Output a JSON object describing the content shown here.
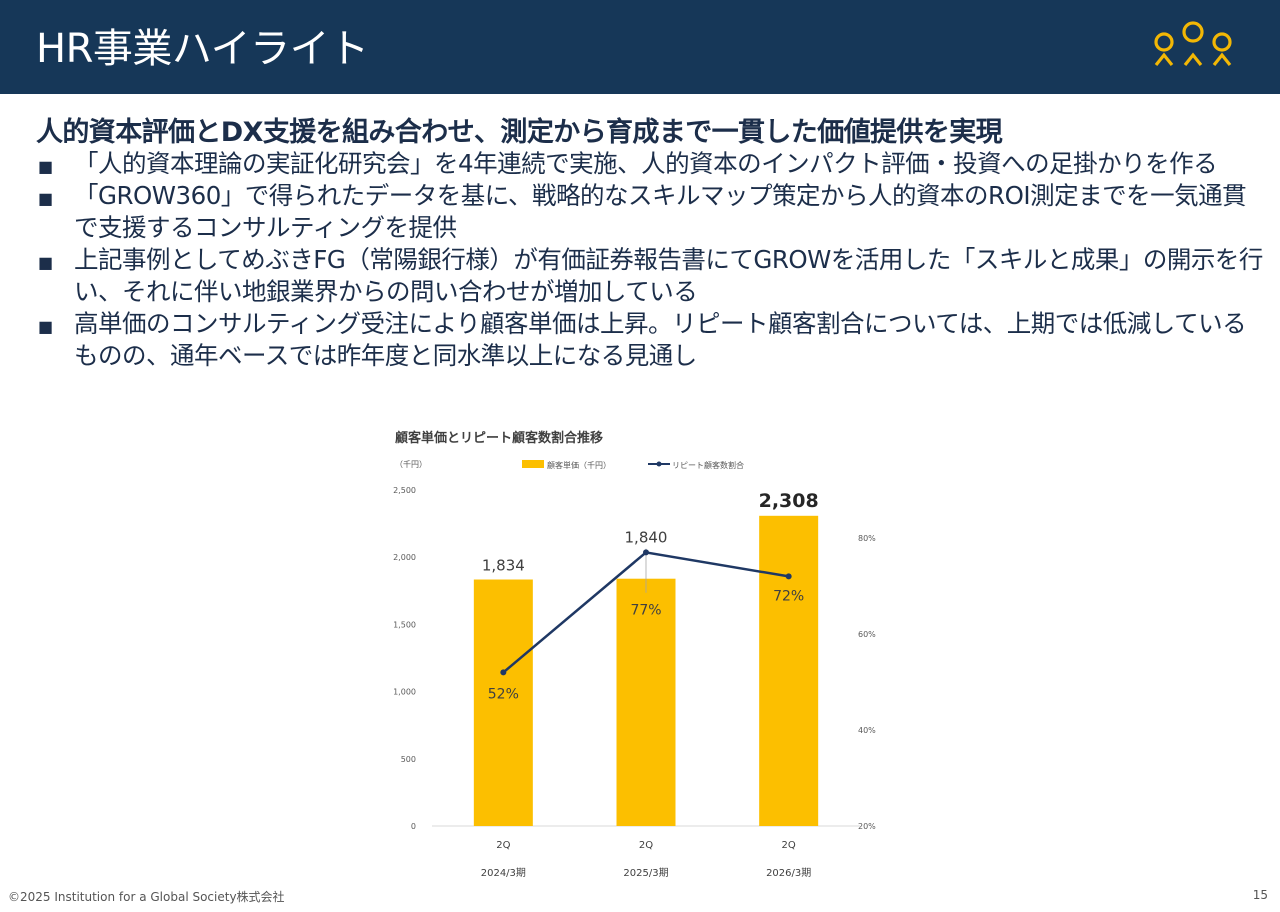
{
  "header": {
    "title": "HR事業ハイライト"
  },
  "colors": {
    "header_bg": "#163758",
    "logo": "#f2b705",
    "bar": "#fcbf00",
    "line": "#1f3864"
  },
  "headline": "人的資本評価とDX支援を組み合わせ、測定から育成まで一貫した価値提供を実現",
  "bullets": [
    {
      "mark": "■",
      "text": "「人的資本理論の実証化研究会」を4年連続で実施、人的資本のインパクト評価・投資への足掛かりを作る"
    },
    {
      "mark": "■",
      "text": "「GROW360」で得られたデータを基に、戦略的なスキルマップ策定から人的資本のROI測定までを一気通貫で支援するコンサルティングを提供"
    },
    {
      "mark": "■",
      "text": "上記事例としてめぶきFG（常陽銀行様）が有価証券報告書にてGROWを活用した「スキルと成果」の開示を行い、それに伴い地銀業界からの問い合わせが増加している"
    },
    {
      "mark": "■",
      "text": "高単価のコンサルティング受注により顧客単価は上昇。リピート顧客割合については、上期では低減しているものの、通年ベースでは昨年度と同水準以上になる見通し"
    }
  ],
  "chart_data": {
    "type": "bar",
    "title": "顧客単価とリピート顧客数割合推移",
    "left_unit": "（千円）",
    "categories": [
      "2Q",
      "2Q",
      "2Q"
    ],
    "period_labels": [
      "2024/3期",
      "2025/3期",
      "2026/3期"
    ],
    "series": [
      {
        "name": "顧客単価（千円）",
        "kind": "bar",
        "axis": "left",
        "values": [
          1834,
          1840,
          2308
        ],
        "labels": [
          "1,834",
          "1,840",
          "2,308"
        ]
      },
      {
        "name": "リピート顧客数割合",
        "kind": "line",
        "axis": "right",
        "values": [
          52,
          77,
          72
        ],
        "labels": [
          "52%",
          "77%",
          "72%"
        ]
      }
    ],
    "left_axis": {
      "min": 0,
      "max": 2500,
      "ticks": [
        0,
        500,
        1000,
        1500,
        2000,
        2500
      ],
      "tick_labels": [
        "0",
        "500",
        "1,000",
        "1,500",
        "2,000",
        "2,500"
      ]
    },
    "right_axis": {
      "min": 20,
      "max": 80,
      "ticks": [
        20,
        40,
        60,
        80
      ],
      "tick_labels": [
        "20%",
        "40%",
        "60%",
        "80%"
      ]
    },
    "legend_position": "top",
    "grid": false
  },
  "footer": {
    "copyright": "©2025  Institution for a Global Society株式会社",
    "page": "15"
  }
}
